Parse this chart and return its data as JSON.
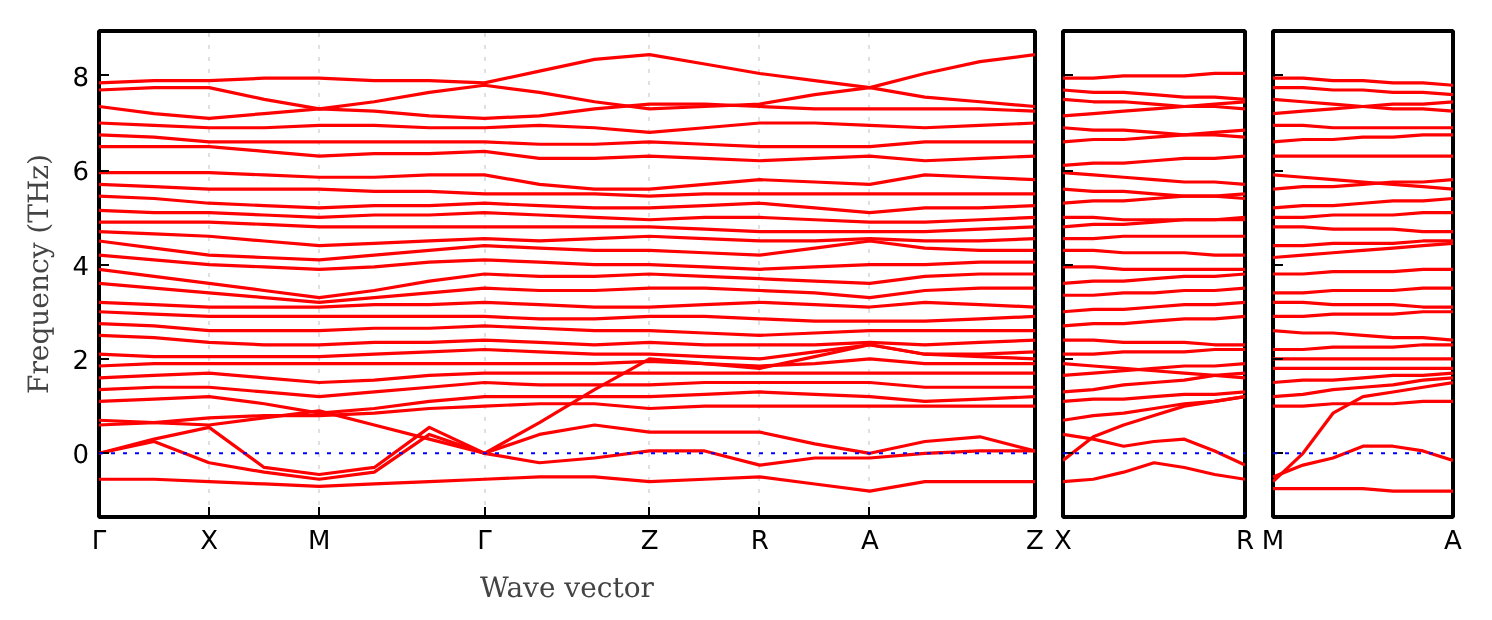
{
  "chart_data": [
    {
      "type": "line",
      "ylabel": "Frequency (THz)",
      "xlabel": "Wave vector",
      "grid": "x",
      "ylim": [
        -1.35,
        8.95
      ],
      "yticks": [
        0,
        2,
        4,
        6,
        8
      ],
      "categories": [
        "Γ",
        null,
        "X",
        null,
        "M",
        null,
        null,
        "Γ",
        null,
        null,
        "Z",
        null,
        "R",
        null,
        "A",
        null,
        null,
        "Z"
      ],
      "ref_lines": [
        {
          "axis": "y",
          "value": 0,
          "color": "#0000ff",
          "line_style": "dotted"
        }
      ],
      "series": [
        {
          "color": "#ff0000",
          "values": [
            7.85,
            7.9,
            7.9,
            7.95,
            7.95,
            7.9,
            7.9,
            7.85,
            8.1,
            8.35,
            8.45,
            8.25,
            8.05,
            7.9,
            7.75,
            8.05,
            8.3,
            8.45
          ]
        },
        {
          "color": "#ff0000",
          "values": [
            7.7,
            7.75,
            7.75,
            7.5,
            7.3,
            7.45,
            7.65,
            7.8,
            7.65,
            7.45,
            7.3,
            7.35,
            7.4,
            7.6,
            7.75,
            7.55,
            7.45,
            7.35
          ]
        },
        {
          "color": "#ff0000",
          "values": [
            7.35,
            7.2,
            7.1,
            7.2,
            7.3,
            7.25,
            7.15,
            7.1,
            7.15,
            7.3,
            7.4,
            7.4,
            7.35,
            7.3,
            7.3,
            7.3,
            7.3,
            7.25
          ]
        },
        {
          "color": "#ff0000",
          "values": [
            7.0,
            6.95,
            6.9,
            6.9,
            6.95,
            6.95,
            6.9,
            6.9,
            6.95,
            6.9,
            6.8,
            6.9,
            7.0,
            7.0,
            6.95,
            6.9,
            6.95,
            7.0
          ]
        },
        {
          "color": "#ff0000",
          "values": [
            6.75,
            6.7,
            6.6,
            6.6,
            6.6,
            6.6,
            6.6,
            6.6,
            6.55,
            6.55,
            6.6,
            6.55,
            6.5,
            6.5,
            6.5,
            6.6,
            6.6,
            6.6
          ]
        },
        {
          "color": "#ff0000",
          "values": [
            6.5,
            6.5,
            6.5,
            6.4,
            6.3,
            6.35,
            6.35,
            6.4,
            6.25,
            6.25,
            6.3,
            6.25,
            6.2,
            6.25,
            6.3,
            6.2,
            6.25,
            6.3
          ]
        },
        {
          "color": "#ff0000",
          "values": [
            5.95,
            5.95,
            5.95,
            5.9,
            5.85,
            5.85,
            5.9,
            5.9,
            5.7,
            5.6,
            5.6,
            5.7,
            5.8,
            5.75,
            5.7,
            5.9,
            5.85,
            5.8
          ]
        },
        {
          "color": "#ff0000",
          "values": [
            5.7,
            5.65,
            5.6,
            5.6,
            5.6,
            5.55,
            5.55,
            5.5,
            5.5,
            5.5,
            5.45,
            5.5,
            5.5,
            5.5,
            5.5,
            5.5,
            5.5,
            5.5
          ]
        },
        {
          "color": "#ff0000",
          "values": [
            5.45,
            5.4,
            5.3,
            5.25,
            5.2,
            5.25,
            5.25,
            5.3,
            5.25,
            5.2,
            5.2,
            5.25,
            5.3,
            5.2,
            5.1,
            5.2,
            5.2,
            5.25
          ]
        },
        {
          "color": "#ff0000",
          "values": [
            5.15,
            5.1,
            5.1,
            5.05,
            5.0,
            5.05,
            5.05,
            5.1,
            5.05,
            5.0,
            4.95,
            5.0,
            5.0,
            4.95,
            4.9,
            4.9,
            4.95,
            5.0
          ]
        },
        {
          "color": "#ff0000",
          "values": [
            4.9,
            4.9,
            4.9,
            4.85,
            4.8,
            4.8,
            4.8,
            4.8,
            4.8,
            4.8,
            4.8,
            4.75,
            4.7,
            4.7,
            4.7,
            4.7,
            4.75,
            4.8
          ]
        },
        {
          "color": "#ff0000",
          "values": [
            4.7,
            4.65,
            4.6,
            4.5,
            4.4,
            4.45,
            4.5,
            4.55,
            4.5,
            4.55,
            4.6,
            4.55,
            4.5,
            4.5,
            4.55,
            4.5,
            4.5,
            4.55
          ]
        },
        {
          "color": "#ff0000",
          "values": [
            4.5,
            4.35,
            4.2,
            4.15,
            4.1,
            4.2,
            4.3,
            4.4,
            4.35,
            4.3,
            4.3,
            4.25,
            4.2,
            4.35,
            4.5,
            4.35,
            4.3,
            4.3
          ]
        },
        {
          "color": "#ff0000",
          "values": [
            4.2,
            4.1,
            4.0,
            3.95,
            3.9,
            3.95,
            4.05,
            4.1,
            4.05,
            4.0,
            4.0,
            3.95,
            3.9,
            3.95,
            4.0,
            4.0,
            4.05,
            4.05
          ]
        },
        {
          "color": "#ff0000",
          "values": [
            3.9,
            3.75,
            3.6,
            3.45,
            3.3,
            3.45,
            3.65,
            3.8,
            3.75,
            3.75,
            3.8,
            3.75,
            3.7,
            3.65,
            3.6,
            3.75,
            3.8,
            3.8
          ]
        },
        {
          "color": "#ff0000",
          "values": [
            3.6,
            3.5,
            3.4,
            3.3,
            3.2,
            3.3,
            3.4,
            3.5,
            3.45,
            3.45,
            3.5,
            3.5,
            3.45,
            3.4,
            3.3,
            3.45,
            3.5,
            3.5
          ]
        },
        {
          "color": "#ff0000",
          "values": [
            3.2,
            3.15,
            3.1,
            3.1,
            3.1,
            3.15,
            3.15,
            3.2,
            3.15,
            3.1,
            3.1,
            3.15,
            3.2,
            3.15,
            3.1,
            3.2,
            3.15,
            3.1
          ]
        },
        {
          "color": "#ff0000",
          "values": [
            3.0,
            2.95,
            2.9,
            2.9,
            2.9,
            2.9,
            2.9,
            2.9,
            2.85,
            2.85,
            2.9,
            2.9,
            2.85,
            2.8,
            2.8,
            2.8,
            2.85,
            2.9
          ]
        },
        {
          "color": "#ff0000",
          "values": [
            2.75,
            2.7,
            2.6,
            2.6,
            2.6,
            2.65,
            2.65,
            2.7,
            2.65,
            2.6,
            2.6,
            2.55,
            2.5,
            2.55,
            2.6,
            2.6,
            2.6,
            2.6
          ]
        },
        {
          "color": "#ff0000",
          "values": [
            2.5,
            2.45,
            2.35,
            2.3,
            2.3,
            2.35,
            2.35,
            2.4,
            2.35,
            2.3,
            2.35,
            2.3,
            2.3,
            2.3,
            2.35,
            2.3,
            2.35,
            2.4
          ]
        },
        {
          "color": "#ff0000",
          "values": [
            2.1,
            2.05,
            2.05,
            2.05,
            2.05,
            2.1,
            2.15,
            2.2,
            2.15,
            2.1,
            2.1,
            2.05,
            2.0,
            2.15,
            2.3,
            2.1,
            2.1,
            2.15
          ]
        },
        {
          "color": "#ff0000",
          "values": [
            1.85,
            1.9,
            1.9,
            1.9,
            1.9,
            1.9,
            1.9,
            1.9,
            1.9,
            1.9,
            1.95,
            1.9,
            1.85,
            1.9,
            2.0,
            1.9,
            1.9,
            1.9
          ]
        },
        {
          "color": "#ff0000",
          "values": [
            1.6,
            1.65,
            1.7,
            1.6,
            1.5,
            1.55,
            1.65,
            1.7,
            1.7,
            1.7,
            1.7,
            1.7,
            1.7,
            1.7,
            1.7,
            1.7,
            1.7,
            1.7
          ]
        },
        {
          "color": "#ff0000",
          "values": [
            1.35,
            1.4,
            1.4,
            1.3,
            1.2,
            1.3,
            1.4,
            1.5,
            1.45,
            1.45,
            1.45,
            1.5,
            1.5,
            1.5,
            1.5,
            1.4,
            1.4,
            1.4
          ]
        },
        {
          "color": "#ff0000",
          "values": [
            1.1,
            1.15,
            1.2,
            1.05,
            0.85,
            0.95,
            1.1,
            1.2,
            1.2,
            1.2,
            1.2,
            1.25,
            1.3,
            1.25,
            1.2,
            1.1,
            1.15,
            1.2
          ]
        },
        {
          "color": "#ff0000",
          "values": [
            0.6,
            0.65,
            0.75,
            0.8,
            0.8,
            0.85,
            0.95,
            1.0,
            1.05,
            1.05,
            0.95,
            1.0,
            1.0,
            1.0,
            1.0,
            1.0,
            1.0,
            1.0
          ]
        },
        {
          "color": "#ff0000",
          "values": [
            0.7,
            0.65,
            0.6,
            0.75,
            0.9,
            0.6,
            0.3,
            0.0,
            0.65,
            1.35,
            2.0,
            1.9,
            1.8,
            2.05,
            2.3,
            2.1,
            2.05,
            2.0
          ]
        },
        {
          "color": "#ff0000",
          "values": [
            -0.55,
            -0.55,
            -0.6,
            -0.65,
            -0.7,
            -0.65,
            -0.6,
            -0.55,
            -0.5,
            -0.5,
            -0.6,
            -0.55,
            -0.5,
            -0.65,
            -0.8,
            -0.6,
            -0.6,
            -0.6
          ]
        },
        {
          "color": "#ff0000",
          "values": [
            0,
            0.25,
            -0.2,
            -0.4,
            -0.55,
            -0.4,
            0.4,
            0.0,
            -0.2,
            -0.1,
            0.05,
            0.05,
            -0.25,
            -0.1,
            -0.1,
            0.0,
            0.05,
            0.05
          ]
        },
        {
          "color": "#ff0000",
          "values": [
            0,
            0.3,
            0.55,
            -0.3,
            -0.45,
            -0.3,
            0.55,
            0.0,
            0.4,
            0.6,
            0.45,
            0.45,
            0.45,
            0.2,
            0.0,
            0.25,
            0.35,
            0.05
          ]
        }
      ]
    },
    {
      "type": "line",
      "tick_labels": "x",
      "ylim": [
        -1.35,
        8.95
      ],
      "yticks": [
        0,
        2,
        4,
        6,
        8
      ],
      "categories": [
        "X",
        null,
        null,
        null,
        null,
        null,
        "R"
      ],
      "ref_lines": [
        {
          "axis": "y",
          "value": 0,
          "color": "#0000ff",
          "line_style": "dotted"
        }
      ],
      "series": [
        {
          "color": "#ff0000",
          "values": [
            7.95,
            7.95,
            8.0,
            8.0,
            8.0,
            8.05,
            8.05
          ]
        },
        {
          "color": "#ff0000",
          "values": [
            7.7,
            7.65,
            7.65,
            7.6,
            7.55,
            7.55,
            7.5
          ]
        },
        {
          "color": "#ff0000",
          "values": [
            7.5,
            7.45,
            7.45,
            7.4,
            7.35,
            7.35,
            7.3
          ]
        },
        {
          "color": "#ff0000",
          "values": [
            7.15,
            7.2,
            7.25,
            7.3,
            7.35,
            7.4,
            7.45
          ]
        },
        {
          "color": "#ff0000",
          "values": [
            6.9,
            6.85,
            6.85,
            6.8,
            6.75,
            6.75,
            6.7
          ]
        },
        {
          "color": "#ff0000",
          "values": [
            6.6,
            6.65,
            6.65,
            6.7,
            6.75,
            6.8,
            6.85
          ]
        },
        {
          "color": "#ff0000",
          "values": [
            6.1,
            6.15,
            6.15,
            6.2,
            6.25,
            6.25,
            6.3
          ]
        },
        {
          "color": "#ff0000",
          "values": [
            5.95,
            5.9,
            5.85,
            5.8,
            5.75,
            5.75,
            5.7
          ]
        },
        {
          "color": "#ff0000",
          "values": [
            5.6,
            5.55,
            5.55,
            5.5,
            5.45,
            5.45,
            5.4
          ]
        },
        {
          "color": "#ff0000",
          "values": [
            5.3,
            5.35,
            5.35,
            5.4,
            5.45,
            5.45,
            5.5
          ]
        },
        {
          "color": "#ff0000",
          "values": [
            5.0,
            5.0,
            4.95,
            4.95,
            4.95,
            4.95,
            4.95
          ]
        },
        {
          "color": "#ff0000",
          "values": [
            4.8,
            4.85,
            4.85,
            4.9,
            4.95,
            4.95,
            5.0
          ]
        },
        {
          "color": "#ff0000",
          "values": [
            4.55,
            4.55,
            4.6,
            4.6,
            4.6,
            4.6,
            4.6
          ]
        },
        {
          "color": "#ff0000",
          "values": [
            4.3,
            4.3,
            4.25,
            4.25,
            4.25,
            4.2,
            4.2
          ]
        },
        {
          "color": "#ff0000",
          "values": [
            3.95,
            3.95,
            3.9,
            3.9,
            3.9,
            3.9,
            3.9
          ]
        },
        {
          "color": "#ff0000",
          "values": [
            3.6,
            3.65,
            3.65,
            3.7,
            3.75,
            3.75,
            3.8
          ]
        },
        {
          "color": "#ff0000",
          "values": [
            3.35,
            3.35,
            3.4,
            3.4,
            3.45,
            3.45,
            3.5
          ]
        },
        {
          "color": "#ff0000",
          "values": [
            3.0,
            3.05,
            3.05,
            3.1,
            3.15,
            3.15,
            3.2
          ]
        },
        {
          "color": "#ff0000",
          "values": [
            2.7,
            2.75,
            2.75,
            2.8,
            2.85,
            2.85,
            2.9
          ]
        },
        {
          "color": "#ff0000",
          "values": [
            2.4,
            2.4,
            2.35,
            2.35,
            2.35,
            2.3,
            2.3
          ]
        },
        {
          "color": "#ff0000",
          "values": [
            2.1,
            2.1,
            2.15,
            2.15,
            2.15,
            2.2,
            2.2
          ]
        },
        {
          "color": "#ff0000",
          "values": [
            1.9,
            1.85,
            1.8,
            1.75,
            1.7,
            1.65,
            1.6
          ]
        },
        {
          "color": "#ff0000",
          "values": [
            1.65,
            1.7,
            1.75,
            1.8,
            1.85,
            1.85,
            1.9
          ]
        },
        {
          "color": "#ff0000",
          "values": [
            1.3,
            1.35,
            1.45,
            1.5,
            1.55,
            1.65,
            1.7
          ]
        },
        {
          "color": "#ff0000",
          "values": [
            1.1,
            1.15,
            1.15,
            1.2,
            1.25,
            1.25,
            1.3
          ]
        },
        {
          "color": "#ff0000",
          "values": [
            0.7,
            0.8,
            0.85,
            0.95,
            1.05,
            1.1,
            1.2
          ]
        },
        {
          "color": "#ff0000",
          "values": [
            0.4,
            0.3,
            0.15,
            0.25,
            0.3,
            0.05,
            -0.25
          ]
        },
        {
          "color": "#ff0000",
          "values": [
            -0.15,
            0.35,
            0.6,
            0.8,
            1.0,
            1.1,
            1.2
          ]
        },
        {
          "color": "#ff0000",
          "values": [
            -0.6,
            -0.55,
            -0.4,
            -0.2,
            -0.3,
            -0.45,
            -0.55
          ]
        }
      ]
    },
    {
      "type": "line",
      "tick_labels": "x",
      "ylim": [
        -1.35,
        8.95
      ],
      "yticks": [
        0,
        2,
        4,
        6,
        8
      ],
      "categories": [
        "M",
        null,
        null,
        null,
        null,
        null,
        "A"
      ],
      "ref_lines": [
        {
          "axis": "y",
          "value": 0,
          "color": "#0000ff",
          "line_style": "dotted"
        }
      ],
      "series": [
        {
          "color": "#ff0000",
          "values": [
            7.95,
            7.95,
            7.9,
            7.9,
            7.85,
            7.85,
            7.8
          ]
        },
        {
          "color": "#ff0000",
          "values": [
            7.75,
            7.75,
            7.7,
            7.7,
            7.65,
            7.65,
            7.6
          ]
        },
        {
          "color": "#ff0000",
          "values": [
            7.5,
            7.45,
            7.4,
            7.35,
            7.3,
            7.3,
            7.25
          ]
        },
        {
          "color": "#ff0000",
          "values": [
            7.2,
            7.25,
            7.3,
            7.35,
            7.4,
            7.4,
            7.45
          ]
        },
        {
          "color": "#ff0000",
          "values": [
            6.95,
            6.95,
            6.9,
            6.9,
            6.9,
            6.9,
            6.9
          ]
        },
        {
          "color": "#ff0000",
          "values": [
            6.6,
            6.65,
            6.65,
            6.7,
            6.7,
            6.75,
            6.75
          ]
        },
        {
          "color": "#ff0000",
          "values": [
            6.3,
            6.3,
            6.3,
            6.3,
            6.3,
            6.3,
            6.3
          ]
        },
        {
          "color": "#ff0000",
          "values": [
            5.9,
            5.85,
            5.8,
            5.75,
            5.7,
            5.65,
            5.6
          ]
        },
        {
          "color": "#ff0000",
          "values": [
            5.6,
            5.65,
            5.65,
            5.7,
            5.75,
            5.75,
            5.8
          ]
        },
        {
          "color": "#ff0000",
          "values": [
            5.2,
            5.25,
            5.25,
            5.3,
            5.35,
            5.35,
            5.4
          ]
        },
        {
          "color": "#ff0000",
          "values": [
            5.0,
            5.0,
            5.05,
            5.05,
            5.05,
            5.1,
            5.1
          ]
        },
        {
          "color": "#ff0000",
          "values": [
            4.8,
            4.8,
            4.75,
            4.75,
            4.75,
            4.7,
            4.7
          ]
        },
        {
          "color": "#ff0000",
          "values": [
            4.4,
            4.4,
            4.45,
            4.45,
            4.45,
            4.5,
            4.5
          ]
        },
        {
          "color": "#ff0000",
          "values": [
            4.15,
            4.2,
            4.25,
            4.3,
            4.35,
            4.4,
            4.45
          ]
        },
        {
          "color": "#ff0000",
          "values": [
            3.8,
            3.8,
            3.85,
            3.85,
            3.85,
            3.9,
            3.9
          ]
        },
        {
          "color": "#ff0000",
          "values": [
            3.4,
            3.4,
            3.45,
            3.45,
            3.45,
            3.5,
            3.5
          ]
        },
        {
          "color": "#ff0000",
          "values": [
            3.2,
            3.2,
            3.15,
            3.15,
            3.15,
            3.1,
            3.1
          ]
        },
        {
          "color": "#ff0000",
          "values": [
            2.9,
            2.9,
            2.95,
            2.95,
            2.95,
            3.0,
            3.0
          ]
        },
        {
          "color": "#ff0000",
          "values": [
            2.6,
            2.55,
            2.55,
            2.5,
            2.45,
            2.45,
            2.4
          ]
        },
        {
          "color": "#ff0000",
          "values": [
            2.2,
            2.2,
            2.25,
            2.25,
            2.25,
            2.3,
            2.3
          ]
        },
        {
          "color": "#ff0000",
          "values": [
            2.0,
            2.0,
            2.0,
            2.0,
            2.0,
            2.0,
            2.0
          ]
        },
        {
          "color": "#ff0000",
          "values": [
            1.8,
            1.8,
            1.8,
            1.8,
            1.8,
            1.8,
            1.8
          ]
        },
        {
          "color": "#ff0000",
          "values": [
            1.5,
            1.55,
            1.55,
            1.6,
            1.65,
            1.65,
            1.7
          ]
        },
        {
          "color": "#ff0000",
          "values": [
            1.2,
            1.25,
            1.35,
            1.4,
            1.45,
            1.55,
            1.6
          ]
        },
        {
          "color": "#ff0000",
          "values": [
            1.0,
            1.0,
            1.05,
            1.05,
            1.05,
            1.1,
            1.1
          ]
        },
        {
          "color": "#ff0000",
          "values": [
            -0.6,
            0.0,
            0.85,
            1.2,
            1.3,
            1.4,
            1.5
          ]
        },
        {
          "color": "#ff0000",
          "values": [
            -0.5,
            -0.25,
            -0.1,
            0.15,
            0.15,
            0.05,
            -0.15
          ]
        },
        {
          "color": "#ff0000",
          "values": [
            -0.75,
            -0.75,
            -0.75,
            -0.75,
            -0.8,
            -0.8,
            -0.8
          ]
        }
      ]
    }
  ]
}
